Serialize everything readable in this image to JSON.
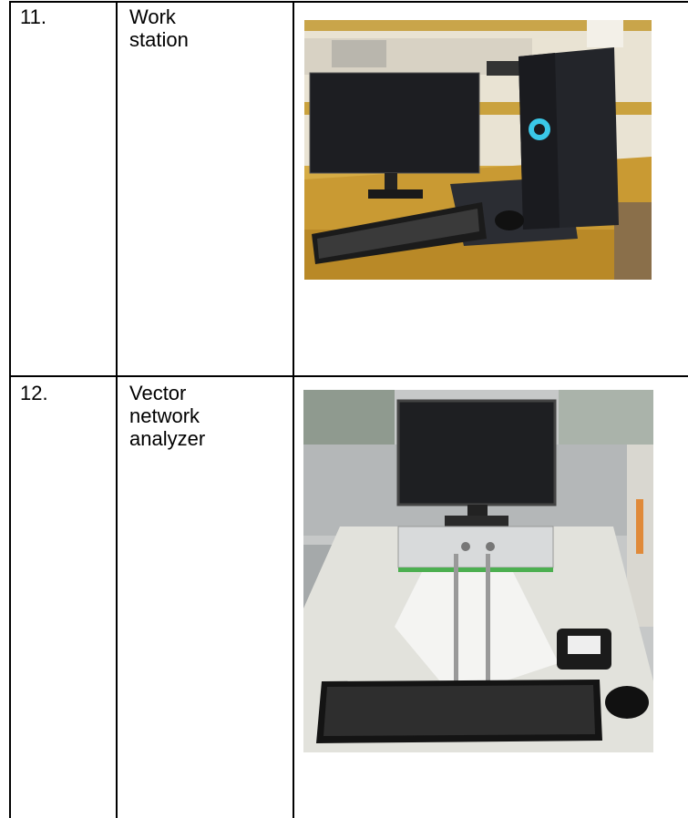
{
  "table": {
    "rows": [
      {
        "number": "11.",
        "name": "Work station"
      },
      {
        "number": "12.",
        "name": "Vector network analyzer"
      }
    ]
  }
}
